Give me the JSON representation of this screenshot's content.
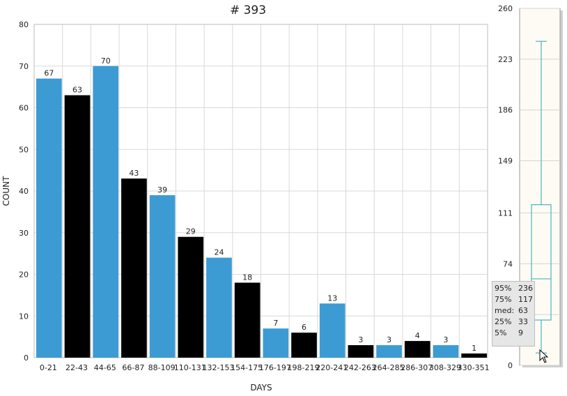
{
  "chart_data": [
    {
      "type": "bar",
      "title": "# 393",
      "xlabel": "DAYS",
      "ylabel": "COUNT",
      "ylim": [
        0,
        80
      ],
      "yticks": [
        0,
        10,
        20,
        30,
        40,
        50,
        60,
        70,
        80
      ],
      "grid": true,
      "categories": [
        "0-21",
        "22-43",
        "44-65",
        "66-87",
        "88-109",
        "110-131",
        "132-153",
        "154-175",
        "176-197",
        "198-219",
        "220-241",
        "242-263",
        "264-285",
        "286-307",
        "308-329",
        "330-351"
      ],
      "values": [
        67,
        63,
        70,
        43,
        39,
        29,
        24,
        18,
        7,
        6,
        13,
        3,
        3,
        4,
        3,
        1
      ],
      "bar_colors": [
        "#3d9bd3",
        "#000000",
        "#3d9bd3",
        "#000000",
        "#3d9bd3",
        "#000000",
        "#3d9bd3",
        "#000000",
        "#3d9bd3",
        "#000000",
        "#3d9bd3",
        "#000000",
        "#3d9bd3",
        "#000000",
        "#3d9bd3",
        "#000000"
      ]
    },
    {
      "type": "box",
      "ylim": [
        0,
        260
      ],
      "yticks": [
        "0",
        "37",
        "74",
        "111",
        "149",
        "186",
        "223",
        "260"
      ],
      "whisker_low": 9,
      "q1": 33,
      "median": 63,
      "q3": 117,
      "whisker_high": 236,
      "color": "#4ab3c4",
      "background": "#fdfbf3"
    }
  ],
  "tooltip": {
    "rows": [
      {
        "key": "95%",
        "value": "236"
      },
      {
        "key": "75%",
        "value": "117"
      },
      {
        "key": "med:",
        "value": "63"
      },
      {
        "key": "25%",
        "value": "33"
      },
      {
        "key": "5%",
        "value": "9"
      }
    ]
  }
}
